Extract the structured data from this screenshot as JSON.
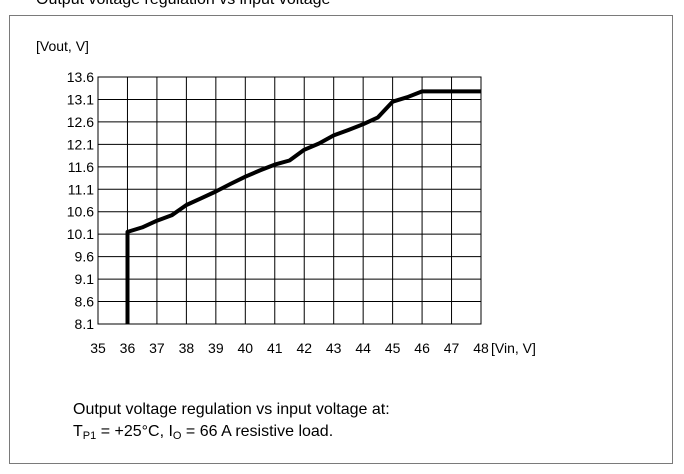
{
  "header_fragment": "Output voltage regulation vs input voltage",
  "caption": {
    "line1": "Output voltage regulation vs input voltage at:",
    "tp_main": "T",
    "tp_sub": "P1",
    "tp_rest": " = +25°C, I",
    "io_sub": "O",
    "io_rest": " = 66 A resistive load."
  },
  "chart_data": {
    "type": "line",
    "xlabel": "[Vin, V]",
    "ylabel": "[Vout, V]",
    "xlim": [
      35,
      48
    ],
    "ylim": [
      8.1,
      13.6
    ],
    "x_ticks": [
      "35",
      "36",
      "37",
      "38",
      "39",
      "40",
      "41",
      "42",
      "43",
      "44",
      "45",
      "46",
      "47",
      "48"
    ],
    "y_ticks": [
      "13.6",
      "13.1",
      "12.6",
      "12.1",
      "11.6",
      "11.1",
      "10.6",
      "10.1",
      "9.6",
      "9.1",
      "8.6",
      "8.1"
    ],
    "grid": true,
    "line_color": "#000000",
    "series": [
      {
        "x": [
          36,
          36,
          36.5,
          37,
          37.5,
          38,
          38.5,
          39,
          39.5,
          40,
          40.5,
          41,
          41.5,
          42,
          42.5,
          43,
          43.5,
          44,
          44.5,
          45,
          45.5,
          46,
          46.5,
          47,
          47.5,
          48
        ],
        "y": [
          8.1,
          10.15,
          10.25,
          10.4,
          10.52,
          10.75,
          10.9,
          11.05,
          11.22,
          11.38,
          11.52,
          11.65,
          11.74,
          11.98,
          12.12,
          12.3,
          12.42,
          12.55,
          12.7,
          13.05,
          13.15,
          13.28,
          13.28,
          13.28,
          13.28,
          13.28
        ]
      }
    ]
  }
}
